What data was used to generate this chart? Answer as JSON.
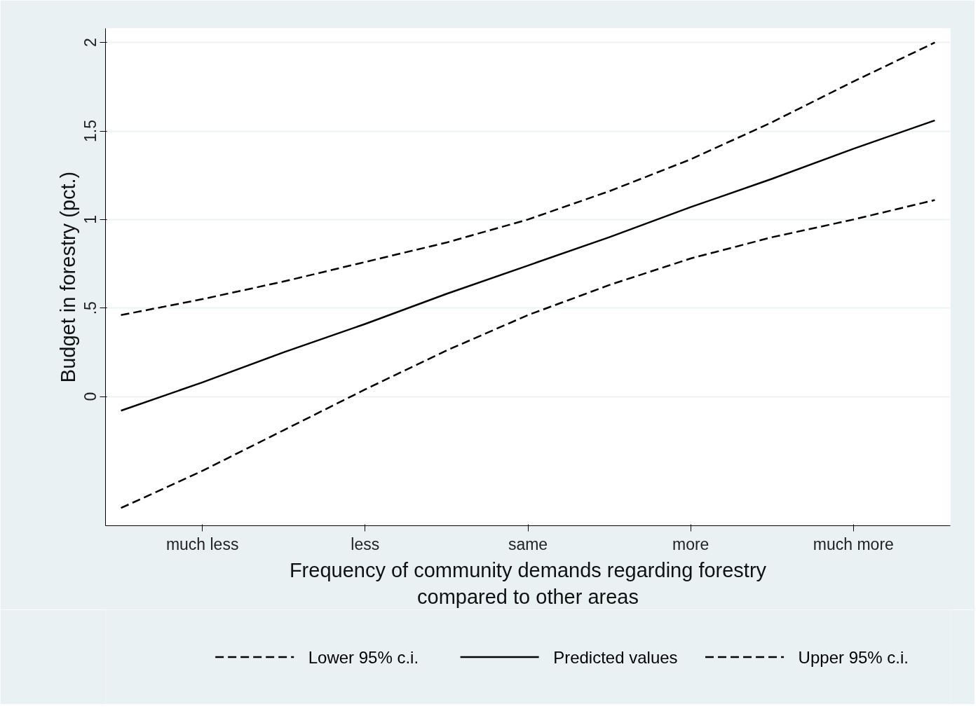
{
  "chart_data": {
    "type": "line",
    "xlabel": "Frequency of community demands regarding forestry\ncompared to other areas",
    "ylabel": "Budget in forestry (pct.)",
    "categories": [
      null,
      "much less",
      null,
      "less",
      null,
      "same",
      null,
      "more",
      null,
      "much more",
      null
    ],
    "ylim": [
      -0.73,
      2.08
    ],
    "yticks": [
      0,
      {
        "value": 0.5,
        "label": ".5"
      },
      1,
      1.5,
      2
    ],
    "grid": "y",
    "legend": "bottom",
    "series": [
      {
        "name": "Lower 95% c.i.",
        "color": "#000000",
        "line_style": "dashed",
        "values": [
          -0.63,
          -0.42,
          -0.19,
          0.04,
          0.26,
          0.46,
          0.63,
          0.78,
          0.9,
          1.0,
          1.11
        ]
      },
      {
        "name": "Predicted values",
        "color": "#000000",
        "line_style": "solid",
        "values": [
          -0.08,
          0.08,
          0.25,
          0.41,
          0.58,
          0.74,
          0.9,
          1.07,
          1.23,
          1.4,
          1.56
        ]
      },
      {
        "name": "Upper 95% c.i.",
        "color": "#000000",
        "line_style": "dashed",
        "values": [
          0.46,
          0.55,
          0.65,
          0.76,
          0.87,
          1.0,
          1.16,
          1.34,
          1.55,
          1.78,
          2.0
        ]
      }
    ]
  }
}
